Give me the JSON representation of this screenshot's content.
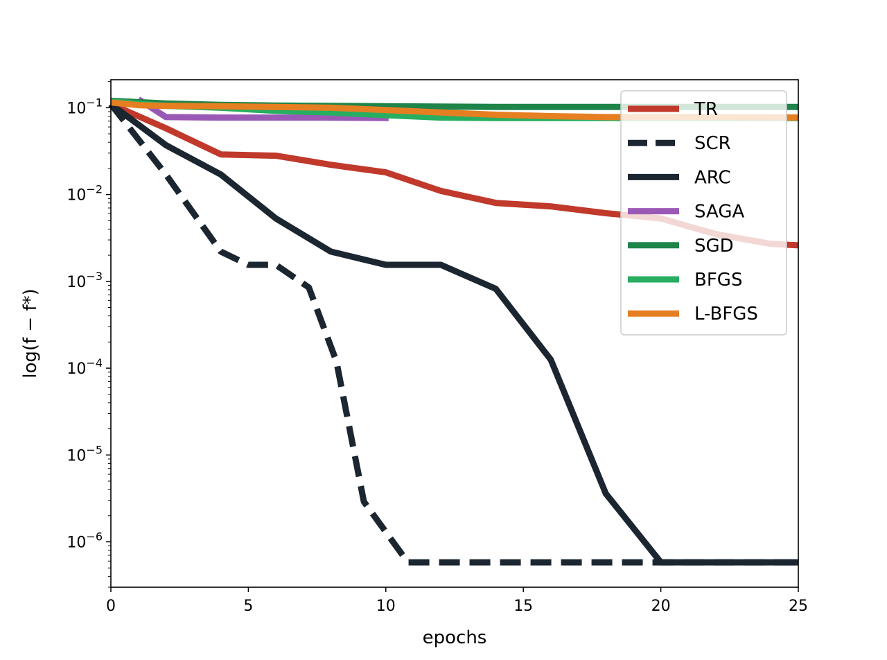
{
  "chart_data": {
    "type": "line",
    "title": "",
    "xlabel": "epochs",
    "ylabel": "log(f − f*)",
    "yscale": "log",
    "xlim": [
      0,
      25
    ],
    "ylim": [
      3e-07,
      0.21
    ],
    "xticks": [
      0,
      5,
      10,
      15,
      20,
      25
    ],
    "yticks": [
      {
        "value": 0.1,
        "base": "10",
        "exp": "−1"
      },
      {
        "value": 0.01,
        "base": "10",
        "exp": "−2"
      },
      {
        "value": 0.001,
        "base": "10",
        "exp": "−3"
      },
      {
        "value": 0.0001,
        "base": "10",
        "exp": "−4"
      },
      {
        "value": 1e-05,
        "base": "10",
        "exp": "−5"
      },
      {
        "value": 1e-06,
        "base": "10",
        "exp": "−6"
      }
    ],
    "legend_position": "top-right",
    "series": [
      {
        "name": "TR",
        "color": "#c0392b",
        "dash": "solid",
        "x": [
          0,
          2,
          4,
          6,
          8,
          10,
          12,
          14,
          16,
          18,
          20,
          22,
          24,
          25
        ],
        "y": [
          0.11,
          0.058,
          0.029,
          0.028,
          0.022,
          0.018,
          0.011,
          0.008,
          0.0073,
          0.0061,
          0.0053,
          0.0035,
          0.0027,
          0.0026
        ]
      },
      {
        "name": "SCR",
        "color": "#1b2631",
        "dash": "dashed",
        "x": [
          0,
          2,
          4,
          5,
          6,
          7.2,
          8.2,
          9.2,
          10.8,
          12,
          16,
          20,
          25
        ],
        "y": [
          0.11,
          0.017,
          0.0022,
          0.00155,
          0.00155,
          0.00085,
          0.00012,
          2.9e-06,
          5.8e-07,
          5.8e-07,
          5.8e-07,
          5.8e-07,
          5.8e-07
        ]
      },
      {
        "name": "ARC",
        "color": "#1b2631",
        "dash": "solid",
        "x": [
          0,
          2,
          4,
          6,
          8,
          10,
          12,
          14,
          16,
          18,
          20,
          22,
          25
        ],
        "y": [
          0.11,
          0.037,
          0.017,
          0.0053,
          0.0022,
          0.00155,
          0.00155,
          0.00082,
          0.000125,
          3.6e-06,
          5.8e-07,
          5.8e-07,
          5.8e-07
        ]
      },
      {
        "name": "SAGA",
        "color": "#9b59b6",
        "dash": "solid",
        "x": [
          1,
          2,
          4,
          6,
          8,
          10.1
        ],
        "y": [
          0.125,
          0.078,
          0.077,
          0.077,
          0.077,
          0.076
        ]
      },
      {
        "name": "SGD",
        "color": "#1e8449",
        "dash": "solid",
        "x": [
          0,
          2,
          4,
          6,
          8,
          10,
          12,
          14,
          16,
          18,
          20,
          22,
          25
        ],
        "y": [
          0.12,
          0.112,
          0.108,
          0.106,
          0.105,
          0.104,
          0.103,
          0.102,
          0.102,
          0.102,
          0.102,
          0.102,
          0.102
        ]
      },
      {
        "name": "BFGS",
        "color": "#27ae60",
        "dash": "solid",
        "x": [
          0,
          2,
          4,
          6,
          8,
          10,
          12,
          14,
          16,
          18,
          20,
          22,
          25
        ],
        "y": [
          0.118,
          0.105,
          0.1,
          0.092,
          0.088,
          0.082,
          0.077,
          0.076,
          0.076,
          0.076,
          0.076,
          0.076,
          0.076
        ]
      },
      {
        "name": "L-BFGS",
        "color": "#e67e22",
        "dash": "solid",
        "x": [
          0,
          1,
          2,
          4,
          6,
          8,
          10,
          12,
          14,
          16,
          18,
          20,
          22,
          25
        ],
        "y": [
          0.115,
          0.107,
          0.105,
          0.104,
          0.102,
          0.1,
          0.094,
          0.088,
          0.083,
          0.08,
          0.078,
          0.078,
          0.078,
          0.077
        ]
      }
    ]
  }
}
